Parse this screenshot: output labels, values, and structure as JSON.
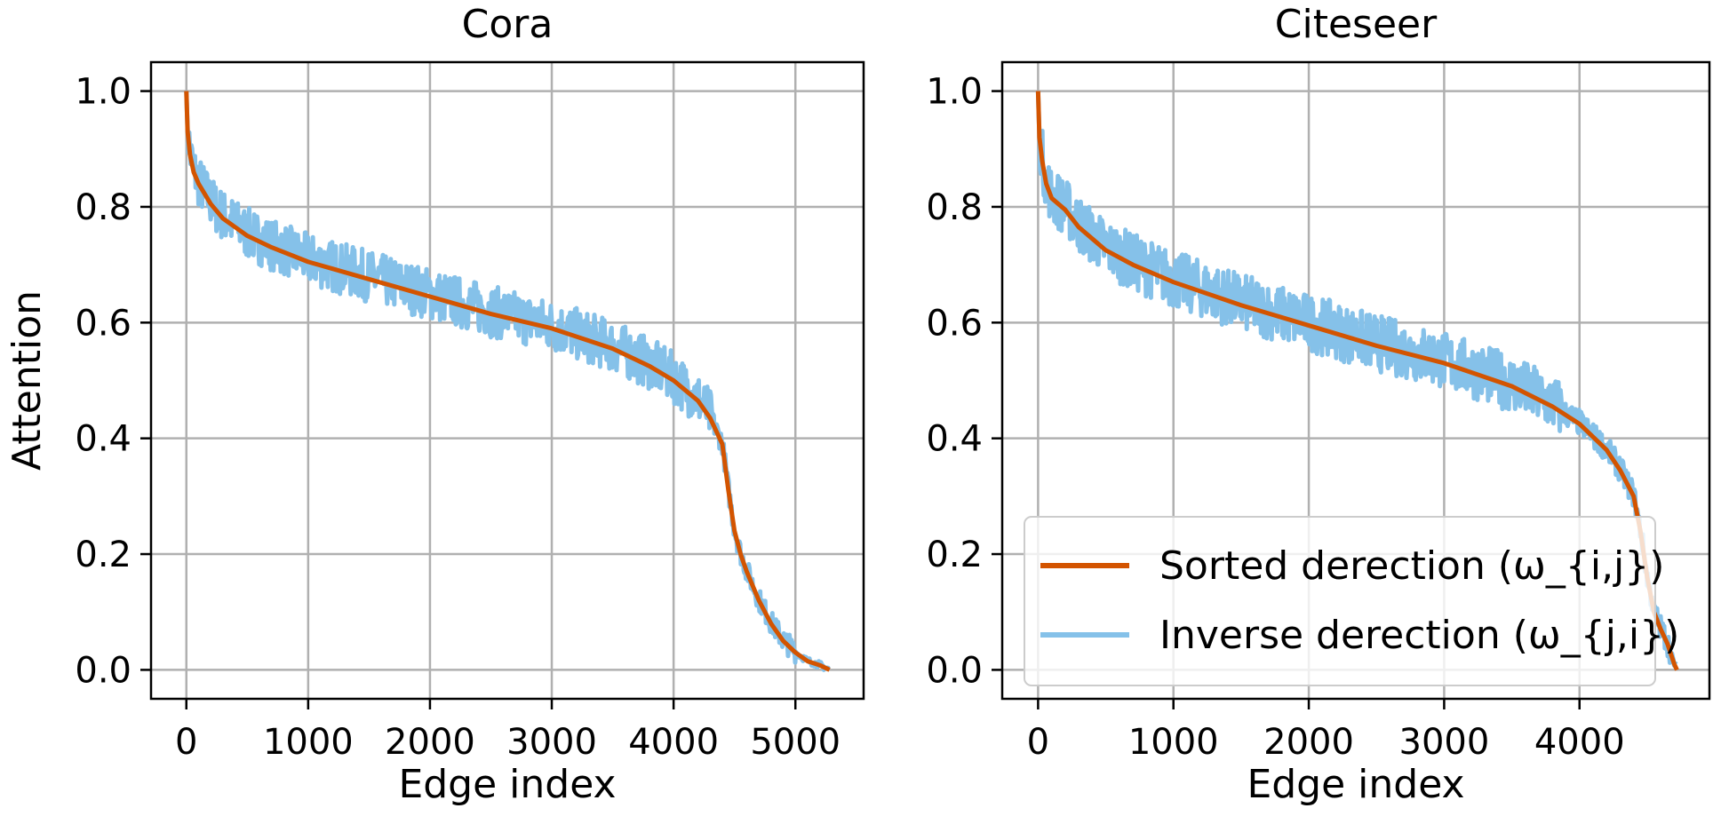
{
  "chart_data": [
    {
      "type": "line",
      "title": "Cora",
      "xlabel": "Edge index",
      "ylabel": "Attention",
      "xlim": [
        -290,
        5560
      ],
      "ylim": [
        -0.05,
        1.05
      ],
      "xticks": [
        0,
        1000,
        2000,
        3000,
        4000,
        5000
      ],
      "xtick_labels": [
        "0",
        "1000",
        "2000",
        "3000",
        "4000",
        "5000"
      ],
      "yticks": [
        0.0,
        0.2,
        0.4,
        0.6,
        0.8,
        1.0
      ],
      "ytick_labels": [
        "0.0",
        "0.2",
        "0.4",
        "0.6",
        "0.8",
        "1.0"
      ],
      "grid": true,
      "legend": false,
      "series": [
        {
          "name": "Sorted derection (ω_{i,j})",
          "color": "#d35400",
          "x": [
            0,
            10,
            30,
            60,
            100,
            200,
            300,
            400,
            500,
            700,
            1000,
            1500,
            2000,
            2500,
            3000,
            3500,
            3800,
            4000,
            4200,
            4300,
            4400,
            4450,
            4500,
            4550,
            4600,
            4700,
            4800,
            4900,
            5000,
            5100,
            5200,
            5280
          ],
          "y": [
            1.0,
            0.93,
            0.89,
            0.86,
            0.84,
            0.805,
            0.78,
            0.765,
            0.75,
            0.73,
            0.705,
            0.675,
            0.645,
            0.615,
            0.59,
            0.555,
            0.525,
            0.5,
            0.465,
            0.435,
            0.39,
            0.31,
            0.24,
            0.2,
            0.17,
            0.12,
            0.08,
            0.05,
            0.03,
            0.015,
            0.008,
            0.0
          ]
        },
        {
          "name": "Inverse derection (ω_{j,i})",
          "color": "#85c1e9",
          "noise": 0.045
        }
      ]
    },
    {
      "type": "line",
      "title": "Citeseer",
      "xlabel": "Edge index",
      "ylabel": "",
      "xlim": [
        -265,
        4960
      ],
      "ylim": [
        -0.05,
        1.05
      ],
      "xticks": [
        0,
        1000,
        2000,
        3000,
        4000
      ],
      "xtick_labels": [
        "0",
        "1000",
        "2000",
        "3000",
        "4000"
      ],
      "yticks": [
        0.0,
        0.2,
        0.4,
        0.6,
        0.8,
        1.0
      ],
      "ytick_labels": [
        "0.0",
        "0.2",
        "0.4",
        "0.6",
        "0.8",
        "1.0"
      ],
      "grid": true,
      "legend": true,
      "legend_loc": "lower-right",
      "series": [
        {
          "name": "Sorted derection (ω_{i,j})",
          "color": "#d35400",
          "x": [
            0,
            10,
            30,
            60,
            100,
            200,
            300,
            400,
            500,
            700,
            1000,
            1500,
            2000,
            2500,
            3000,
            3500,
            3800,
            4000,
            4200,
            4300,
            4400,
            4450,
            4500,
            4550,
            4600,
            4650,
            4700,
            4720
          ],
          "y": [
            1.0,
            0.92,
            0.88,
            0.84,
            0.815,
            0.795,
            0.765,
            0.745,
            0.725,
            0.7,
            0.67,
            0.63,
            0.595,
            0.56,
            0.53,
            0.49,
            0.455,
            0.425,
            0.38,
            0.345,
            0.3,
            0.24,
            0.16,
            0.1,
            0.07,
            0.045,
            0.01,
            0.0
          ]
        },
        {
          "name": "Inverse derection (ω_{j,i})",
          "color": "#85c1e9",
          "noise": 0.05
        }
      ]
    }
  ]
}
